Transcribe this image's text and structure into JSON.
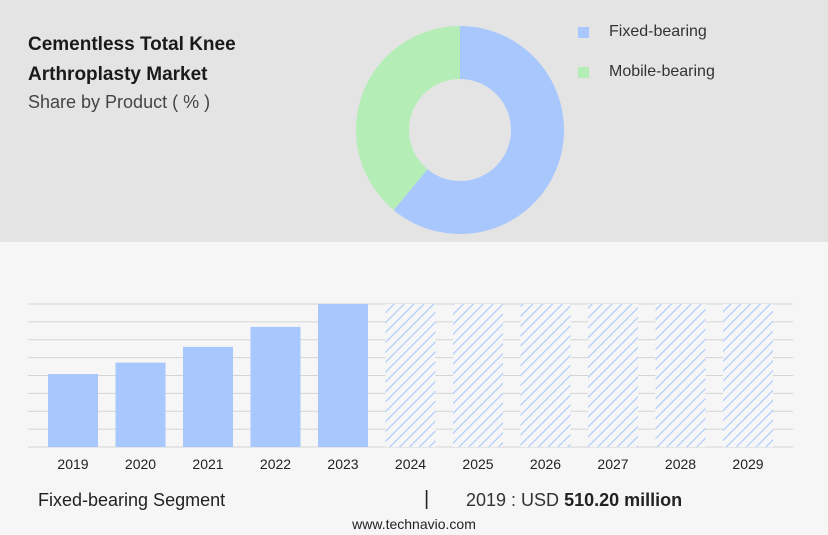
{
  "header": {
    "title": "Cementless Total Knee Arthroplasty Market",
    "subtitle": "Share by Product ( % )"
  },
  "legend": [
    {
      "label": "Fixed-bearing",
      "color": "#a8c8fd"
    },
    {
      "label": "Mobile-bearing",
      "color": "#b5edb7"
    }
  ],
  "footer": {
    "segment": "Fixed-bearing Segment",
    "separator": "|",
    "prefix": "2019 : USD",
    "value": "510.20 million"
  },
  "source": "www.technavio.com",
  "chart_data": [
    {
      "type": "pie",
      "variant": "donut",
      "series": [
        {
          "name": "Fixed-bearing",
          "value": 61,
          "color": "#a8c8fd"
        },
        {
          "name": "Mobile-bearing",
          "value": 39,
          "color": "#b5edb7"
        }
      ]
    },
    {
      "type": "bar",
      "categories": [
        "2019",
        "2020",
        "2021",
        "2022",
        "2023",
        "2024",
        "2025",
        "2026",
        "2027",
        "2028",
        "2029"
      ],
      "values": [
        510.2,
        590,
        700,
        840,
        1000,
        null,
        null,
        null,
        null,
        null,
        null
      ],
      "forecast_from": "2024",
      "color": "#a8c8fd",
      "ylim": [
        0,
        1000
      ],
      "grid": true
    }
  ]
}
